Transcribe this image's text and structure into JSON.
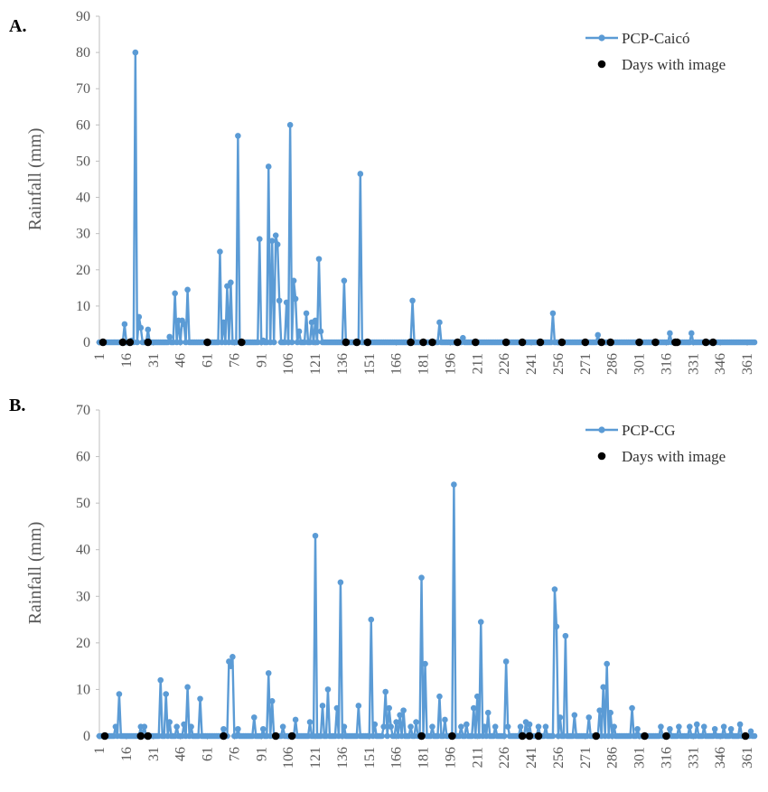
{
  "colors": {
    "series": "#5b9bd5",
    "images": "#000000",
    "axis": "#bfbfbf",
    "text": "#595959"
  },
  "chart_data": [
    {
      "panel": "A.",
      "type": "line",
      "ylabel": "Rainfall (mm)",
      "ylim": [
        0,
        90
      ],
      "yticks": [
        0,
        10,
        20,
        30,
        40,
        50,
        60,
        70,
        80,
        90
      ],
      "xlim": [
        1,
        365
      ],
      "xticks": [
        1,
        16,
        31,
        46,
        61,
        76,
        91,
        106,
        121,
        136,
        151,
        166,
        181,
        196,
        211,
        226,
        241,
        256,
        271,
        286,
        301,
        316,
        331,
        346,
        361
      ],
      "legend": {
        "series": "PCP-Caicó",
        "images": "Days with image",
        "position": "top-right"
      },
      "rain_days": [
        [
          15,
          5
        ],
        [
          19,
          0.5
        ],
        [
          21,
          80
        ],
        [
          23,
          7
        ],
        [
          24,
          4
        ],
        [
          28,
          3.5
        ],
        [
          40,
          1.5
        ],
        [
          43,
          13.5
        ],
        [
          45,
          6
        ],
        [
          47,
          6
        ],
        [
          48,
          5
        ],
        [
          50,
          14.5
        ],
        [
          68,
          25
        ],
        [
          70,
          5.5
        ],
        [
          72,
          15.5
        ],
        [
          74,
          16.5
        ],
        [
          78,
          57
        ],
        [
          90,
          28.5
        ],
        [
          92,
          0.5
        ],
        [
          95,
          48.5
        ],
        [
          97,
          28
        ],
        [
          99,
          29.5
        ],
        [
          100,
          27
        ],
        [
          101,
          11.5
        ],
        [
          105,
          11
        ],
        [
          107,
          60
        ],
        [
          109,
          17
        ],
        [
          110,
          12
        ],
        [
          112,
          3
        ],
        [
          116,
          8
        ],
        [
          119,
          5.5
        ],
        [
          121,
          6
        ],
        [
          123,
          23
        ],
        [
          124,
          3
        ],
        [
          137,
          17
        ],
        [
          146,
          46.5
        ],
        [
          175,
          11.5
        ],
        [
          190,
          5.5
        ],
        [
          203,
          1.2
        ],
        [
          253,
          8
        ],
        [
          278,
          2
        ],
        [
          318,
          2.5
        ],
        [
          330,
          2.5
        ]
      ],
      "image_days": [
        3,
        14,
        18,
        28,
        61,
        80,
        138,
        144,
        150,
        174,
        181,
        186,
        200,
        210,
        227,
        236,
        246,
        258,
        271,
        280,
        285,
        301,
        310,
        321,
        322,
        338,
        342
      ]
    },
    {
      "panel": "B.",
      "type": "line",
      "ylabel": "Rainfall (mm)",
      "ylim": [
        0,
        70
      ],
      "yticks": [
        0,
        10,
        20,
        30,
        40,
        50,
        60,
        70
      ],
      "xlim": [
        1,
        365
      ],
      "xticks": [
        1,
        16,
        31,
        46,
        61,
        76,
        91,
        106,
        121,
        136,
        151,
        166,
        181,
        196,
        211,
        226,
        241,
        256,
        271,
        286,
        301,
        316,
        331,
        346,
        361
      ],
      "legend": {
        "series": "PCP-CG",
        "images": "Days with image",
        "position": "top-right"
      },
      "rain_days": [
        [
          10,
          2
        ],
        [
          12,
          9
        ],
        [
          24,
          2
        ],
        [
          26,
          2
        ],
        [
          35,
          12
        ],
        [
          38,
          9
        ],
        [
          40,
          3
        ],
        [
          44,
          2
        ],
        [
          48,
          2.5
        ],
        [
          50,
          10.5
        ],
        [
          52,
          2
        ],
        [
          57,
          8
        ],
        [
          70,
          1.5
        ],
        [
          73,
          16
        ],
        [
          74,
          15
        ],
        [
          75,
          17
        ],
        [
          78,
          1.5
        ],
        [
          87,
          4
        ],
        [
          92,
          1.5
        ],
        [
          95,
          13.5
        ],
        [
          97,
          7.5
        ],
        [
          103,
          2
        ],
        [
          110,
          3.5
        ],
        [
          118,
          3
        ],
        [
          121,
          43
        ],
        [
          125,
          6.5
        ],
        [
          128,
          10
        ],
        [
          133,
          6
        ],
        [
          135,
          33
        ],
        [
          137,
          2
        ],
        [
          145,
          6.5
        ],
        [
          152,
          25
        ],
        [
          154,
          2.5
        ],
        [
          159,
          2
        ],
        [
          160,
          9.5
        ],
        [
          162,
          6
        ],
        [
          163,
          2
        ],
        [
          166,
          3
        ],
        [
          168,
          4.5
        ],
        [
          170,
          5.5
        ],
        [
          174,
          2
        ],
        [
          177,
          3
        ],
        [
          180,
          34
        ],
        [
          182,
          15.5
        ],
        [
          186,
          2
        ],
        [
          190,
          8.5
        ],
        [
          193,
          3.5
        ],
        [
          198,
          54
        ],
        [
          202,
          2
        ],
        [
          205,
          2.5
        ],
        [
          209,
          6
        ],
        [
          211,
          8.5
        ],
        [
          213,
          24.5
        ],
        [
          215,
          2
        ],
        [
          217,
          5
        ],
        [
          221,
          2
        ],
        [
          227,
          16
        ],
        [
          228,
          2
        ],
        [
          235,
          2
        ],
        [
          238,
          3
        ],
        [
          240,
          2.5
        ],
        [
          245,
          2
        ],
        [
          249,
          2
        ],
        [
          254,
          31.5
        ],
        [
          255,
          23.5
        ],
        [
          257,
          4
        ],
        [
          260,
          21.5
        ],
        [
          265,
          4.5
        ],
        [
          273,
          4
        ],
        [
          279,
          5.5
        ],
        [
          281,
          10.5
        ],
        [
          283,
          15.5
        ],
        [
          285,
          5
        ],
        [
          287,
          2
        ],
        [
          297,
          6
        ],
        [
          300,
          1.5
        ],
        [
          313,
          2
        ],
        [
          318,
          1.5
        ],
        [
          323,
          2
        ],
        [
          329,
          2
        ],
        [
          333,
          2.5
        ],
        [
          337,
          2
        ],
        [
          343,
          1.5
        ],
        [
          348,
          2
        ],
        [
          352,
          1.5
        ],
        [
          357,
          2.5
        ],
        [
          363,
          1
        ]
      ],
      "image_days": [
        4,
        24,
        28,
        70,
        99,
        108,
        180,
        197,
        236,
        240,
        245,
        277,
        304,
        316,
        360
      ]
    }
  ]
}
